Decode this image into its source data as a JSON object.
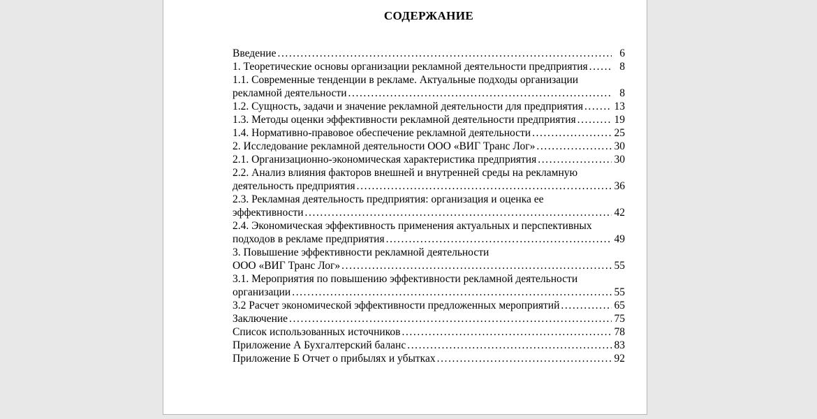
{
  "doc": {
    "title": "СОДЕРЖАНИЕ"
  },
  "toc": {
    "lines": [
      {
        "text": "Введение",
        "page": "6"
      },
      {
        "text": "1. Теоретические основы организации рекламной деятельности предприятия",
        "page": "8"
      },
      {
        "text": "1.1. Современные тенденции в рекламе. Актуальные подходы организации",
        "page": ""
      },
      {
        "text": "рекламной деятельности",
        "page": "8"
      },
      {
        "text": "1.2. Сущность, задачи и значение рекламной деятельности для предприятия",
        "page": "13"
      },
      {
        "text": "1.3. Методы оценки эффективности рекламной деятельности предприятия",
        "page": "19"
      },
      {
        "text": "1.4. Нормативно-правовое обеспечение рекламной деятельности",
        "page": "25"
      },
      {
        "text": "2. Исследование рекламной деятельности ООО «ВИГ Транс Лог»",
        "page": "30"
      },
      {
        "text": "2.1. Организационно-экономическая характеристика предприятия",
        "page": "30"
      },
      {
        "text": "2.2. Анализ влияния факторов внешней и внутренней среды на рекламную",
        "page": ""
      },
      {
        "text": "деятельность предприятия",
        "page": "36"
      },
      {
        "text": "2.3. Рекламная деятельность предприятия: организация и оценка ее",
        "page": ""
      },
      {
        "text": "эффективности",
        "page": "42"
      },
      {
        "text": "2.4. Экономическая эффективность применения актуальных и перспективных",
        "page": ""
      },
      {
        "text": "подходов в рекламе предприятия",
        "page": "49"
      },
      {
        "text": "3. Повышение эффективности рекламной деятельности",
        "page": ""
      },
      {
        "text": "ООО «ВИГ Транс Лог»",
        "page": "55"
      },
      {
        "text": "3.1. Мероприятия по повышению эффективности рекламной деятельности",
        "page": ""
      },
      {
        "text": "организации",
        "page": "55"
      },
      {
        "text": "3.2 Расчет экономической эффективности предложенных мероприятий",
        "page": "65"
      },
      {
        "text": "Заключение",
        "page": "75"
      },
      {
        "text": "Список использованных источников",
        "page": "78"
      },
      {
        "text": "Приложение А Бухгалтерский баланс",
        "page": "83"
      },
      {
        "text": "Приложение Б Отчет о прибылях и убытках",
        "page": "92"
      }
    ]
  },
  "colors": {
    "canvas_background": "#e8e8e8",
    "page_background": "#ffffff",
    "page_border": "#b6b6b6",
    "text": "#000000"
  }
}
